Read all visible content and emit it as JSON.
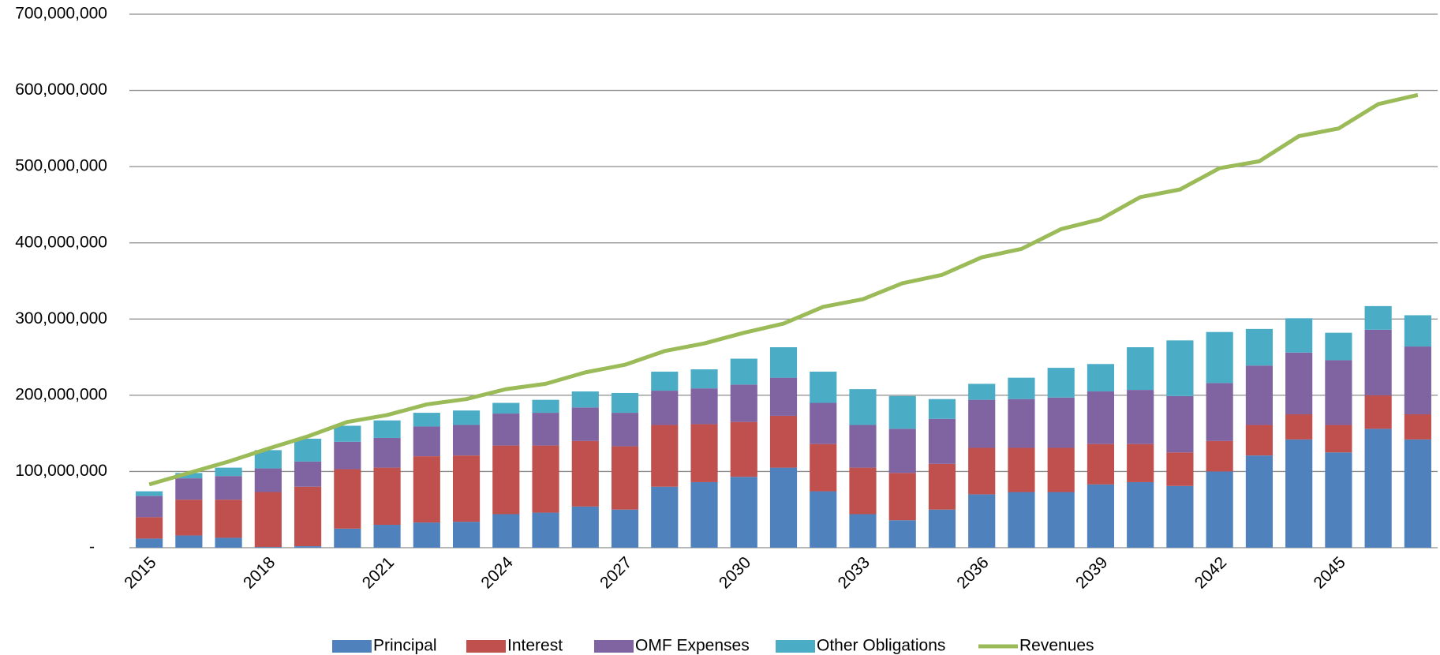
{
  "chart_data": {
    "type": "bar",
    "stacked": true,
    "categories": [
      "2015",
      null,
      null,
      "2018",
      null,
      null,
      "2021",
      null,
      null,
      "2024",
      null,
      null,
      "2027",
      null,
      null,
      "2030",
      null,
      null,
      "2033",
      null,
      null,
      "2036",
      null,
      null,
      "2039",
      null,
      null,
      "2042",
      null,
      null,
      "2045",
      null,
      null
    ],
    "series": [
      {
        "name": "Principal",
        "color": "#4f81bd",
        "values": [
          12000000,
          16000000,
          13000000,
          1000000,
          2000000,
          25000000,
          30000000,
          33000000,
          34000000,
          44000000,
          46000000,
          54000000,
          50000000,
          80000000,
          86000000,
          93000000,
          105000000,
          74000000,
          44000000,
          36000000,
          50000000,
          70000000,
          73000000,
          73000000,
          83000000,
          86000000,
          81000000,
          100000000,
          121000000,
          142000000,
          125000000,
          156000000,
          142000000
        ]
      },
      {
        "name": "Interest",
        "color": "#c0504d",
        "values": [
          28000000,
          47000000,
          50000000,
          72000000,
          78000000,
          78000000,
          75000000,
          87000000,
          87000000,
          90000000,
          88000000,
          86000000,
          83000000,
          81000000,
          76000000,
          72000000,
          68000000,
          62000000,
          61000000,
          62000000,
          60000000,
          61000000,
          58000000,
          58000000,
          53000000,
          50000000,
          44000000,
          40000000,
          40000000,
          33000000,
          36000000,
          44000000,
          33000000
        ]
      },
      {
        "name": "OMF Expenses",
        "color": "#8064a2",
        "values": [
          28000000,
          28000000,
          31000000,
          31000000,
          33000000,
          36000000,
          39000000,
          39000000,
          40000000,
          42000000,
          43000000,
          44000000,
          44000000,
          45000000,
          47000000,
          49000000,
          50000000,
          54000000,
          56000000,
          58000000,
          59000000,
          63000000,
          64000000,
          66000000,
          69000000,
          71000000,
          74000000,
          76000000,
          78000000,
          81000000,
          85000000,
          86000000,
          89000000
        ]
      },
      {
        "name": "Other Obligations",
        "color": "#4bacc6",
        "values": [
          6000000,
          7000000,
          11000000,
          24000000,
          30000000,
          21000000,
          23000000,
          18000000,
          19000000,
          14000000,
          17000000,
          21000000,
          26000000,
          25000000,
          25000000,
          34000000,
          40000000,
          41000000,
          47000000,
          43000000,
          26000000,
          21000000,
          28000000,
          39000000,
          36000000,
          56000000,
          73000000,
          67000000,
          48000000,
          45000000,
          36000000,
          31000000,
          41000000
        ]
      },
      {
        "name": "Revenues",
        "color": "#9bbb59",
        "type": "line",
        "values": [
          83000000,
          98000000,
          113000000,
          130000000,
          146000000,
          165000000,
          174000000,
          188000000,
          195000000,
          208000000,
          215000000,
          230000000,
          240000000,
          258000000,
          268000000,
          282000000,
          294000000,
          316000000,
          326000000,
          347000000,
          358000000,
          381000000,
          392000000,
          418000000,
          431000000,
          460000000,
          470000000,
          498000000,
          507000000,
          540000000,
          550000000,
          582000000,
          594000000
        ]
      }
    ],
    "ylim": [
      0,
      700000000
    ],
    "yticks": [
      {
        "value": 0,
        "label": "-"
      },
      {
        "value": 100000000,
        "label": "100,000,000"
      },
      {
        "value": 200000000,
        "label": "200,000,000"
      },
      {
        "value": 300000000,
        "label": "300,000,000"
      },
      {
        "value": 400000000,
        "label": "400,000,000"
      },
      {
        "value": 500000000,
        "label": "500,000,000"
      },
      {
        "value": 600000000,
        "label": "600,000,000"
      },
      {
        "value": 700000000,
        "label": "700,000,000"
      }
    ],
    "grid": true,
    "legend": "bottom"
  }
}
